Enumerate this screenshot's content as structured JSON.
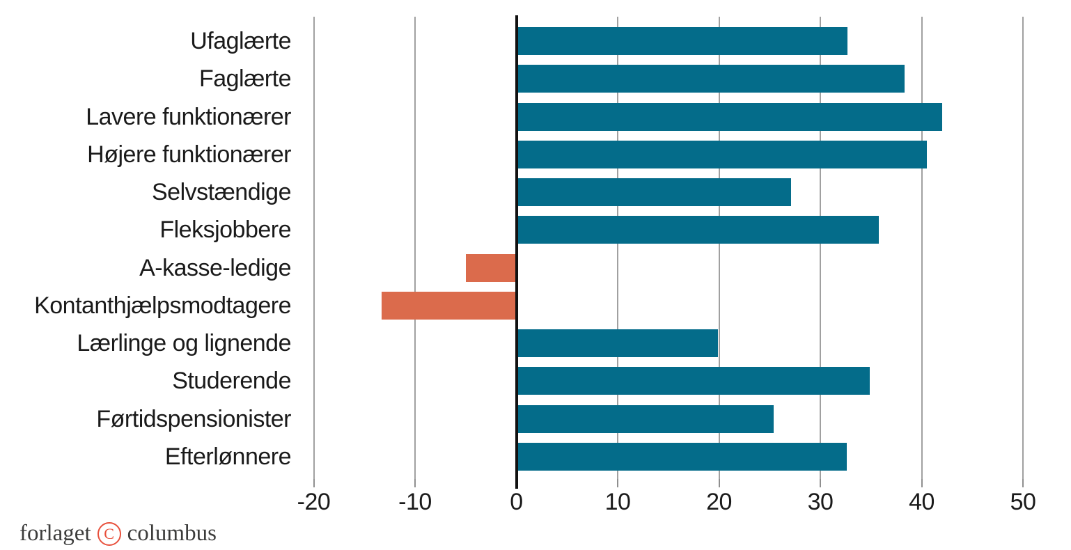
{
  "chart_data": {
    "type": "bar",
    "orientation": "horizontal",
    "title": "",
    "xlabel": "",
    "ylabel": "",
    "categories": [
      "Ufaglærte",
      "Faglærte",
      "Lavere funktionærer",
      "Højere funktionærer",
      "Selvstændige",
      "Fleksjobbere",
      "A-kasse-ledige",
      "Kontanthjælpsmodtagere",
      "Lærlinge og lignende",
      "Studerende",
      "Førtidspensionister",
      "Efterlønnere"
    ],
    "values": [
      32.7,
      38.3,
      42,
      40.5,
      27.1,
      35.8,
      -5,
      -13.3,
      19.9,
      34.9,
      25.4,
      32.6
    ],
    "x_ticks": [
      -20,
      -10,
      0,
      10,
      20,
      30,
      40,
      50
    ],
    "xlim": [
      -25,
      54.7
    ],
    "grid": "vertical-gridlines-at-ticks",
    "legend": "none",
    "colors": {
      "positive_bar": "#046c8a",
      "negative_bar": "#db6b4c",
      "gridline": "#a0a0a0",
      "zero_line": "#111111",
      "label_text": "#1a1a1a"
    }
  },
  "footer": {
    "logo_text_left": "forlaget",
    "logo_symbol": "C",
    "logo_text_right": "columbus",
    "logo_text_color": "#3c3c3b",
    "logo_accent_color": "#e8503c"
  }
}
